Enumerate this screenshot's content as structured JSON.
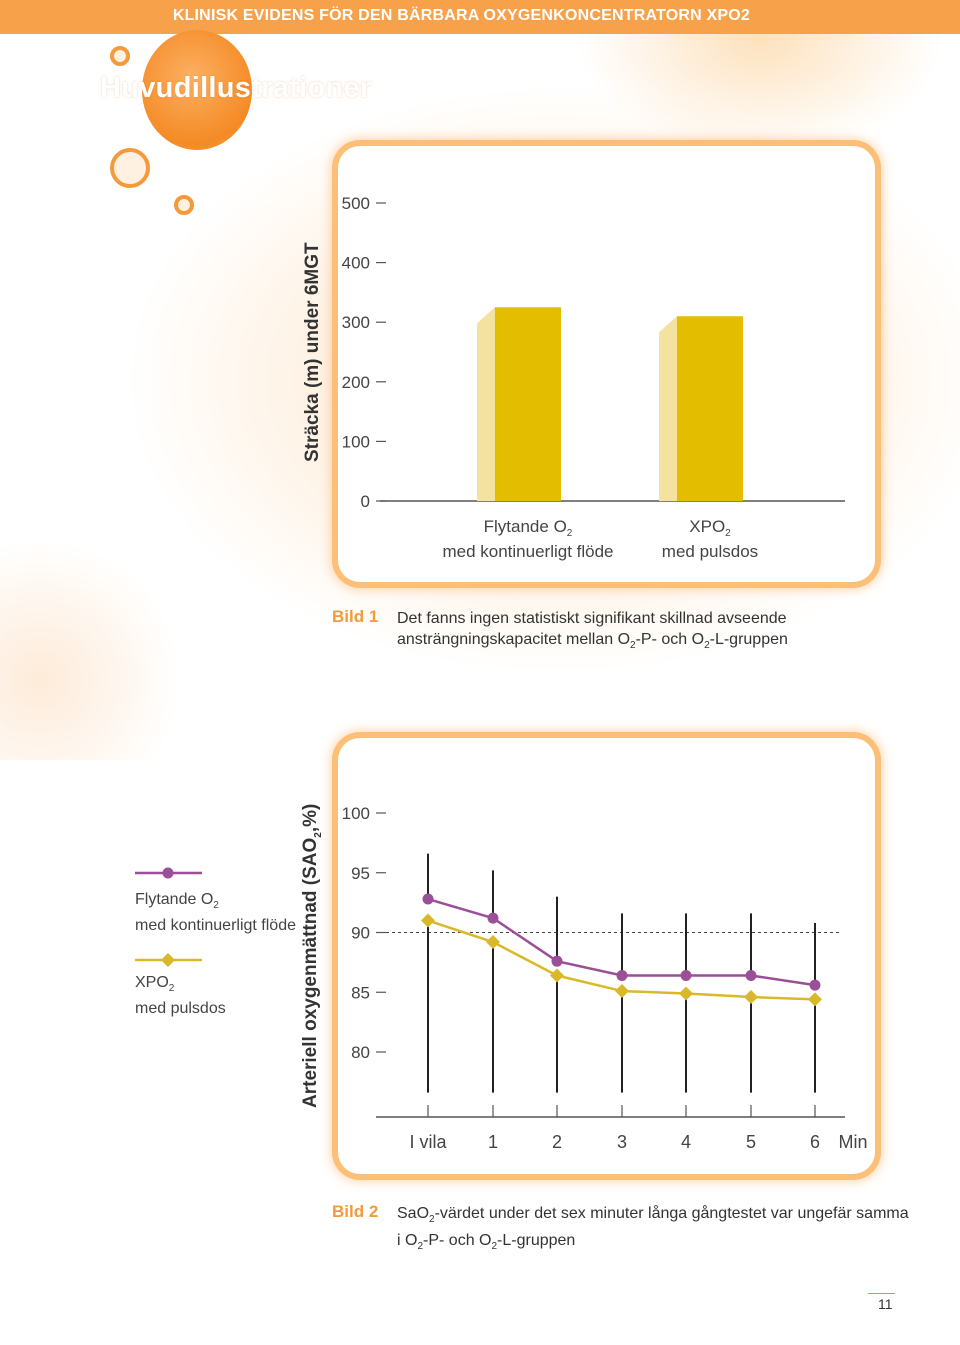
{
  "header": {
    "banner": "KLINISK EVIDENS FÖR DEN BÄRBARA OXYGENKONCENTRATORN XPO2",
    "title": "Huvudillustrationer"
  },
  "colors": {
    "accent": "#f7a24a",
    "bar": "#e2bd00",
    "bar_shadow": "#f3e2a0",
    "purple": "#9b4f96",
    "yellow": "#d9b92a"
  },
  "figure1": {
    "caption_tag": "Bild 1",
    "caption_line1": "Det fanns ingen statistiskt signifikant skillnad avseende",
    "caption_line2_parts": [
      "ansträngningskapacitet mellan O",
      "2",
      "-P- och O",
      "2",
      "-L-gruppen"
    ],
    "chart_data": {
      "type": "bar",
      "title": "",
      "ylabel": "Sträcka (m) under 6MGT",
      "xlabel": "",
      "ylim": [
        0,
        500
      ],
      "yticks": [
        "0",
        "100",
        "200",
        "300",
        "400",
        "500"
      ],
      "categories": [
        {
          "line1": "Flytande O",
          "sub": "2",
          "line2": "med kontinuerligt flöde"
        },
        {
          "line1": "XPO",
          "sub": "2",
          "line2": "med pulsdos"
        }
      ],
      "values": [
        325,
        310
      ]
    }
  },
  "figure2": {
    "caption_tag": "Bild 2",
    "caption_line1_parts": [
      "SaO",
      "2",
      "-värdet under det sex minuter långa gångtestet var ungefär samma"
    ],
    "caption_line2_parts": [
      "i O",
      "2",
      "-P- och O",
      "2",
      "-L-gruppen"
    ],
    "legend": [
      {
        "line1": "Flytande O",
        "sub": "2",
        "line2": "med kontinuerligt flöde",
        "color": "#9b4f96",
        "marker": "circle"
      },
      {
        "line1": "XPO",
        "sub": "2",
        "line2": "med pulsdos",
        "color": "#d9b92a",
        "marker": "diamond"
      }
    ],
    "chart_data": {
      "type": "line",
      "ylabel_main": "Arteriell oxygenmättnad (SAO",
      "ylabel_sub": "2",
      "ylabel_end": ",%)",
      "ylim": [
        75,
        100
      ],
      "yticks": [
        "80",
        "85",
        "90",
        "95",
        "100"
      ],
      "x": [
        "I vila",
        "1",
        "2",
        "3",
        "4",
        "5",
        "6"
      ],
      "xunit": "Min",
      "reference_line": 90,
      "series": [
        {
          "name": "Flytande O2 med kontinuerligt flöde",
          "values": [
            92.8,
            91.2,
            87.6,
            86.4,
            86.4,
            86.4,
            85.6
          ],
          "err_high": [
            96.6,
            95.2,
            93,
            91.6,
            91.6,
            91.6,
            90.8
          ],
          "color": "#9b4f96"
        },
        {
          "name": "XPO2 med pulsdos",
          "values": [
            91,
            89.2,
            86.4,
            85.1,
            84.9,
            84.6,
            84.4
          ],
          "err_low": [
            76.6,
            76.6,
            76.6,
            76.6,
            76.6,
            76.6,
            76.6
          ],
          "color": "#d9b92a"
        }
      ]
    }
  },
  "footer": {
    "page_number": "11"
  }
}
